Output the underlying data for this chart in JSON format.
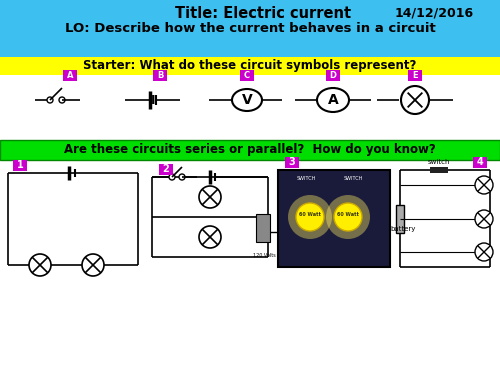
{
  "title_text": "Title: Electric current",
  "date_text": "14/12/2016",
  "lo_text": "LO: Describe how the current behaves in a circuit",
  "starter_text": "Starter: What do these circuit symbols represent?",
  "question_text": "Are these circuits series or parallel?  How do you know?",
  "header_bg": "#3dbfef",
  "starter_bg": "#ffff00",
  "question_bg": "#00dd00",
  "label_bg": "#cc00cc",
  "fig_bg": "#ffffff",
  "symbol_labels": [
    "A",
    "B",
    "C",
    "D",
    "E"
  ],
  "circuit_labels": [
    "1",
    "2",
    "3",
    "4"
  ]
}
